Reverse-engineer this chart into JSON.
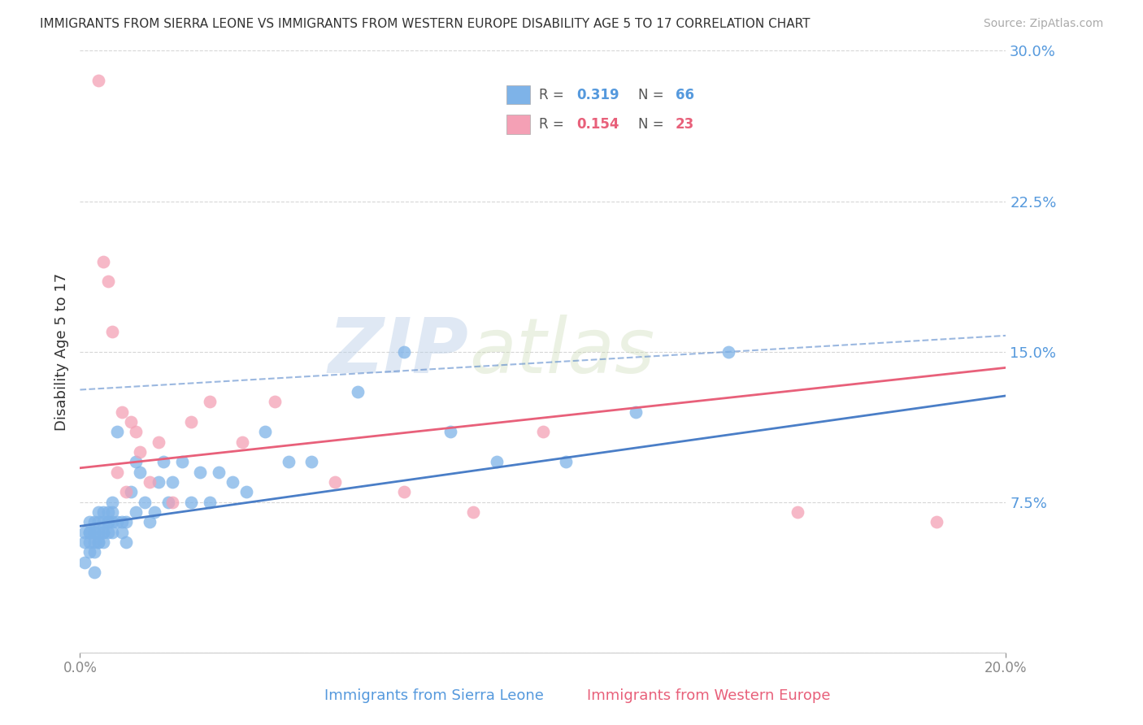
{
  "title": "IMMIGRANTS FROM SIERRA LEONE VS IMMIGRANTS FROM WESTERN EUROPE DISABILITY AGE 5 TO 17 CORRELATION CHART",
  "source": "Source: ZipAtlas.com",
  "ylabel": "Disability Age 5 to 17",
  "xlabel_sl": "Immigrants from Sierra Leone",
  "xlabel_we": "Immigrants from Western Europe",
  "xlim": [
    0.0,
    0.2
  ],
  "ylim": [
    0.0,
    0.3
  ],
  "yticks": [
    0.0,
    0.075,
    0.15,
    0.225,
    0.3
  ],
  "ytick_labels": [
    "",
    "7.5%",
    "15.0%",
    "22.5%",
    "30.0%"
  ],
  "xticks": [
    0.0,
    0.2
  ],
  "xtick_labels": [
    "0.0%",
    "20.0%"
  ],
  "color_sl": "#7EB3E8",
  "color_we": "#F4A0B5",
  "color_sl_line": "#4A7EC7",
  "color_we_line": "#E8607A",
  "watermark_zip": "ZIP",
  "watermark_atlas": "atlas",
  "sl_x": [
    0.001,
    0.001,
    0.001,
    0.002,
    0.002,
    0.002,
    0.002,
    0.002,
    0.003,
    0.003,
    0.003,
    0.003,
    0.003,
    0.003,
    0.004,
    0.004,
    0.004,
    0.004,
    0.004,
    0.005,
    0.005,
    0.005,
    0.005,
    0.005,
    0.006,
    0.006,
    0.006,
    0.006,
    0.007,
    0.007,
    0.007,
    0.007,
    0.008,
    0.008,
    0.009,
    0.009,
    0.01,
    0.01,
    0.011,
    0.012,
    0.012,
    0.013,
    0.014,
    0.015,
    0.016,
    0.017,
    0.018,
    0.019,
    0.02,
    0.022,
    0.024,
    0.026,
    0.028,
    0.03,
    0.033,
    0.036,
    0.04,
    0.045,
    0.05,
    0.06,
    0.07,
    0.08,
    0.09,
    0.105,
    0.12,
    0.14
  ],
  "sl_y": [
    0.055,
    0.06,
    0.045,
    0.06,
    0.055,
    0.065,
    0.06,
    0.05,
    0.06,
    0.055,
    0.065,
    0.06,
    0.05,
    0.04,
    0.065,
    0.055,
    0.06,
    0.055,
    0.07,
    0.06,
    0.06,
    0.065,
    0.07,
    0.055,
    0.06,
    0.065,
    0.07,
    0.065,
    0.065,
    0.06,
    0.07,
    0.075,
    0.065,
    0.11,
    0.06,
    0.065,
    0.065,
    0.055,
    0.08,
    0.07,
    0.095,
    0.09,
    0.075,
    0.065,
    0.07,
    0.085,
    0.095,
    0.075,
    0.085,
    0.095,
    0.075,
    0.09,
    0.075,
    0.09,
    0.085,
    0.08,
    0.11,
    0.095,
    0.095,
    0.13,
    0.15,
    0.11,
    0.095,
    0.095,
    0.12,
    0.15
  ],
  "we_x": [
    0.004,
    0.005,
    0.006,
    0.007,
    0.008,
    0.009,
    0.01,
    0.011,
    0.012,
    0.013,
    0.015,
    0.017,
    0.02,
    0.024,
    0.028,
    0.035,
    0.042,
    0.055,
    0.07,
    0.085,
    0.1,
    0.155,
    0.185
  ],
  "we_y": [
    0.285,
    0.195,
    0.185,
    0.16,
    0.09,
    0.12,
    0.08,
    0.115,
    0.11,
    0.1,
    0.085,
    0.105,
    0.075,
    0.115,
    0.125,
    0.105,
    0.125,
    0.085,
    0.08,
    0.07,
    0.11,
    0.07,
    0.065
  ],
  "sl_line_x0": 0.0,
  "sl_line_y0": 0.063,
  "sl_line_x1": 0.2,
  "sl_line_y1": 0.128,
  "we_line_x0": 0.0,
  "we_line_y0": 0.092,
  "we_line_x1": 0.2,
  "we_line_y1": 0.142,
  "dash_line_x0": 0.0,
  "dash_line_y0": 0.131,
  "dash_line_x1": 0.2,
  "dash_line_y1": 0.158
}
